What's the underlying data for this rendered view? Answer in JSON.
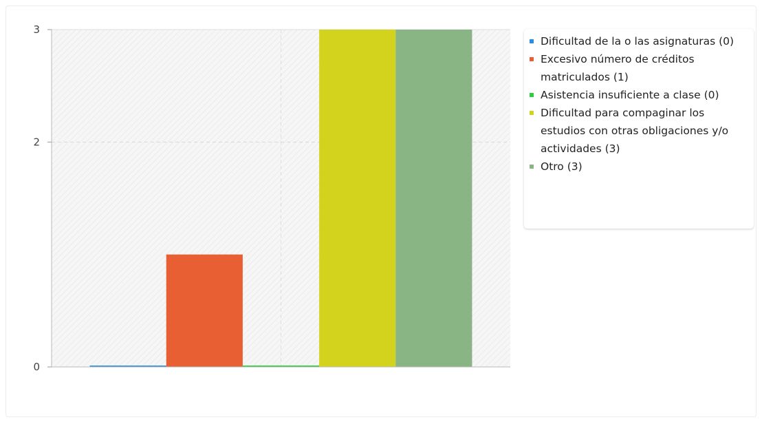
{
  "chart_data": {
    "type": "bar",
    "categories": [
      "Dificultad de la o las asignaturas (0)",
      "Excesivo número de créditos matriculados (1)",
      "Asistencia insuficiente a clase (0)",
      "Dificultad para compaginar los estudios con otras obligaciones y/o actividades (3)",
      "Otro (3)"
    ],
    "values": [
      0,
      1,
      0,
      3,
      3
    ],
    "colors": [
      "#2b8de0",
      "#e85f33",
      "#2ecc40",
      "#d3d31e",
      "#89b483"
    ],
    "ylim": [
      0,
      3
    ],
    "yticks": [
      0,
      2,
      3
    ],
    "xlabel": "",
    "ylabel": "",
    "grid": true,
    "legend_position": "right"
  },
  "legend": {
    "items": [
      {
        "label": "Dificultad de la o las asignaturas (0)",
        "color": "#2b8de0"
      },
      {
        "label": "Excesivo número de créditos matriculados (1)",
        "color": "#e85f33"
      },
      {
        "label": "Asistencia insuficiente a clase (0)",
        "color": "#2ecc40"
      },
      {
        "label": "Dificultad para compaginar los estudios con otras obligaciones y/o actividades (3)",
        "color": "#d3d31e"
      },
      {
        "label": "Otro (3)",
        "color": "#89b483"
      }
    ]
  }
}
